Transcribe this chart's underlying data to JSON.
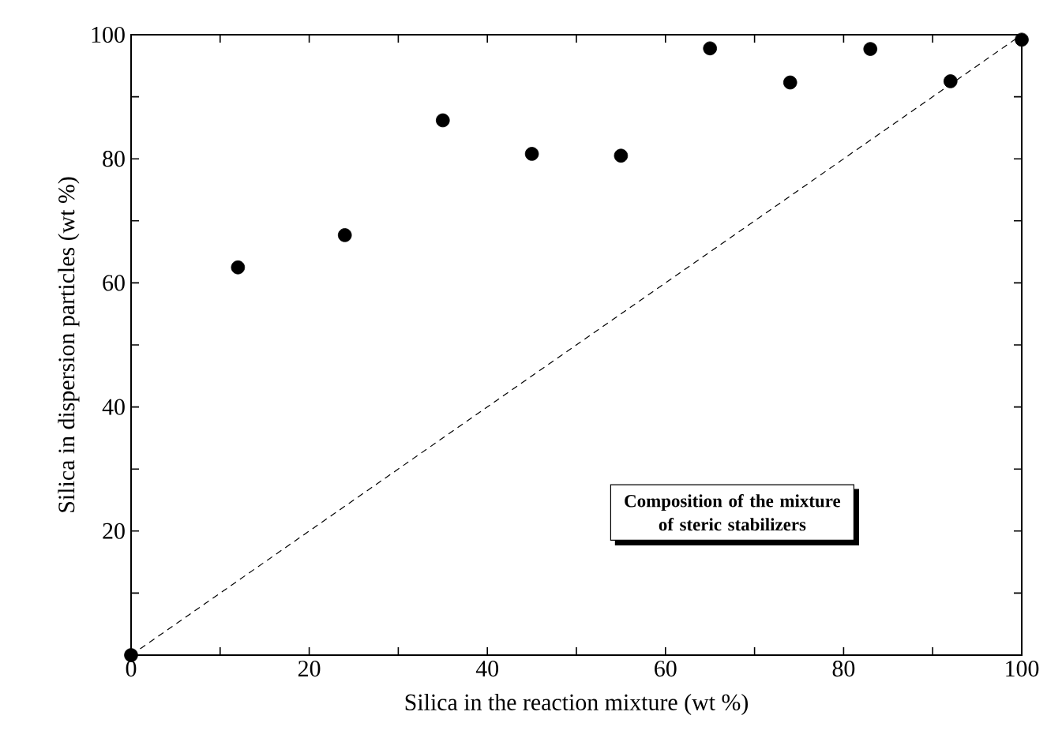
{
  "chart_data": {
    "type": "scatter",
    "xlabel": "Silica in the reaction mixture (wt %)",
    "ylabel": "Silica in dispersion particles (wt %)",
    "annotations": [
      "Composition of the mixture of steric stabilizers"
    ],
    "xlim": [
      0,
      100
    ],
    "ylim": [
      0,
      100
    ],
    "xticks": [
      0,
      {
        "value": 10,
        "label": null
      },
      20,
      {
        "value": 30,
        "label": null
      },
      40,
      {
        "value": 50,
        "label": null
      },
      60,
      {
        "value": 70,
        "label": null
      },
      80,
      {
        "value": 90,
        "label": null
      },
      100
    ],
    "yticks": [
      {
        "value": 10,
        "label": null
      },
      20,
      {
        "value": 30,
        "label": null
      },
      40,
      {
        "value": 50,
        "label": null
      },
      60,
      {
        "value": 70,
        "label": null
      },
      80,
      {
        "value": 90,
        "label": null
      },
      100
    ],
    "series": [
      {
        "type": "scatter",
        "color": "#000000",
        "marker": "circle",
        "x": [
          0,
          12,
          24,
          35,
          45,
          55,
          65,
          74,
          83,
          92,
          100
        ],
        "values": [
          0,
          62.5,
          67.7,
          86.2,
          80.8,
          80.5,
          97.8,
          92.3,
          97.7,
          92.5,
          99.2
        ]
      },
      {
        "type": "line",
        "color": "#000000",
        "line_style": "dashed",
        "marker": "none",
        "x": [
          0,
          100
        ],
        "values": [
          0,
          100
        ]
      }
    ]
  }
}
